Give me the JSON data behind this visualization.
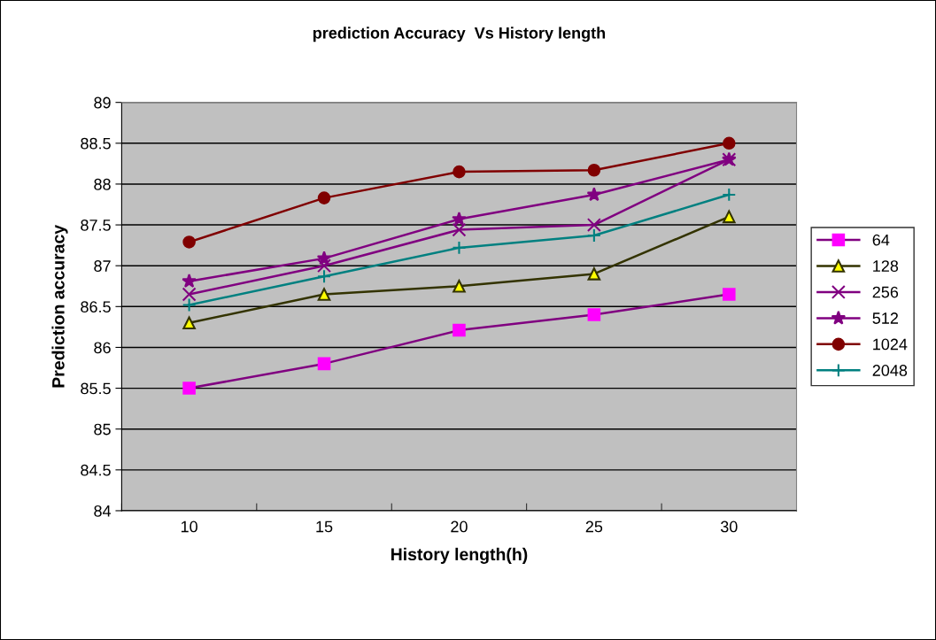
{
  "chart_data": {
    "type": "line",
    "title": "prediction Accuracy  Vs History length",
    "xlabel": "History length(h)",
    "ylabel": "Prediction accuracy",
    "categories": [
      "10",
      "15",
      "20",
      "25",
      "30"
    ],
    "series": [
      {
        "name": "64",
        "color": "#800080",
        "marker": "square",
        "values": [
          85.5,
          85.8,
          86.21,
          86.4,
          86.65
        ]
      },
      {
        "name": "128",
        "color": "#333300",
        "marker": "triangle",
        "values": [
          86.3,
          86.65,
          86.75,
          86.9,
          87.6
        ]
      },
      {
        "name": "256",
        "color": "#800080",
        "marker": "x",
        "values": [
          86.65,
          87.0,
          87.44,
          87.5,
          88.3
        ]
      },
      {
        "name": "512",
        "color": "#800080",
        "marker": "star",
        "values": [
          86.81,
          87.09,
          87.57,
          87.87,
          88.3
        ]
      },
      {
        "name": "1024",
        "color": "#800000",
        "marker": "circle",
        "values": [
          87.29,
          87.83,
          88.15,
          88.17,
          88.5
        ]
      },
      {
        "name": "2048",
        "color": "#008080",
        "marker": "cross",
        "values": [
          86.52,
          86.87,
          87.22,
          87.37,
          87.87
        ]
      }
    ],
    "ylim": [
      84,
      89
    ],
    "yticks": [
      84,
      84.5,
      85,
      85.5,
      86,
      86.5,
      87,
      87.5,
      88,
      88.5,
      89
    ],
    "grid": "y",
    "legend": "right",
    "line_style": "solid"
  }
}
